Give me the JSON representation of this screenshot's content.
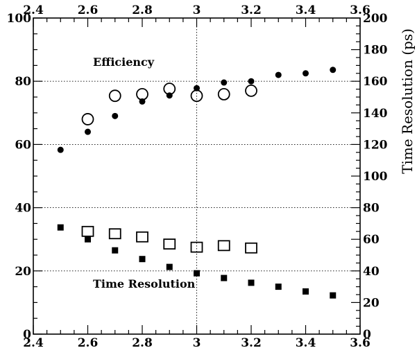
{
  "chart_data": {
    "type": "scatter",
    "title": "",
    "x_axis": {
      "range": [
        2.4,
        3.6
      ],
      "tick_labels": [
        "2.4",
        "2.6",
        "2.8",
        "3",
        "3.2",
        "3.4",
        "3.6"
      ],
      "label": ""
    },
    "y_left_axis": {
      "range": [
        0,
        100
      ],
      "tick_labels": [
        "0",
        "20",
        "40",
        "60",
        "80",
        "100"
      ],
      "label": ""
    },
    "y_right_axis": {
      "range": [
        0,
        200
      ],
      "tick_labels": [
        "0",
        "20",
        "40",
        "60",
        "80",
        "100",
        "120",
        "140",
        "160",
        "180",
        "200"
      ],
      "label": "Time Resolution (ps)"
    },
    "gridlines": {
      "x": [
        3.0
      ],
      "y_left": [
        20,
        40,
        60,
        80
      ]
    },
    "annotations": [
      "Efficiency",
      "Time Resolution"
    ],
    "series": [
      {
        "marker": "filled-circle",
        "axis": "left",
        "x": [
          2.5,
          2.6,
          2.7,
          2.8,
          2.9,
          3.0,
          3.1,
          3.2,
          3.3,
          3.4,
          3.5
        ],
        "y": [
          58.3,
          64.0,
          69.0,
          73.6,
          75.5,
          77.8,
          79.6,
          80.0,
          82.0,
          82.5,
          83.6
        ]
      },
      {
        "marker": "open-circle",
        "axis": "left",
        "x": [
          2.6,
          2.7,
          2.8,
          2.9,
          3.0,
          3.1,
          3.2
        ],
        "y": [
          68.0,
          75.4,
          75.9,
          77.6,
          75.4,
          75.9,
          77.0
        ]
      },
      {
        "marker": "filled-square",
        "axis": "right",
        "x": [
          2.5,
          2.6,
          2.7,
          2.8,
          2.9,
          3.0,
          3.1,
          3.2,
          3.3,
          3.4,
          3.5
        ],
        "y": [
          67.5,
          60.0,
          53.0,
          47.5,
          42.5,
          38.5,
          35.5,
          32.5,
          30.0,
          27.0,
          24.5
        ]
      },
      {
        "marker": "open-square",
        "axis": "right",
        "x": [
          2.6,
          2.7,
          2.8,
          2.9,
          3.0,
          3.1,
          3.2
        ],
        "y": [
          65.0,
          63.5,
          61.5,
          57.0,
          55.0,
          56.0,
          54.5
        ]
      }
    ]
  }
}
